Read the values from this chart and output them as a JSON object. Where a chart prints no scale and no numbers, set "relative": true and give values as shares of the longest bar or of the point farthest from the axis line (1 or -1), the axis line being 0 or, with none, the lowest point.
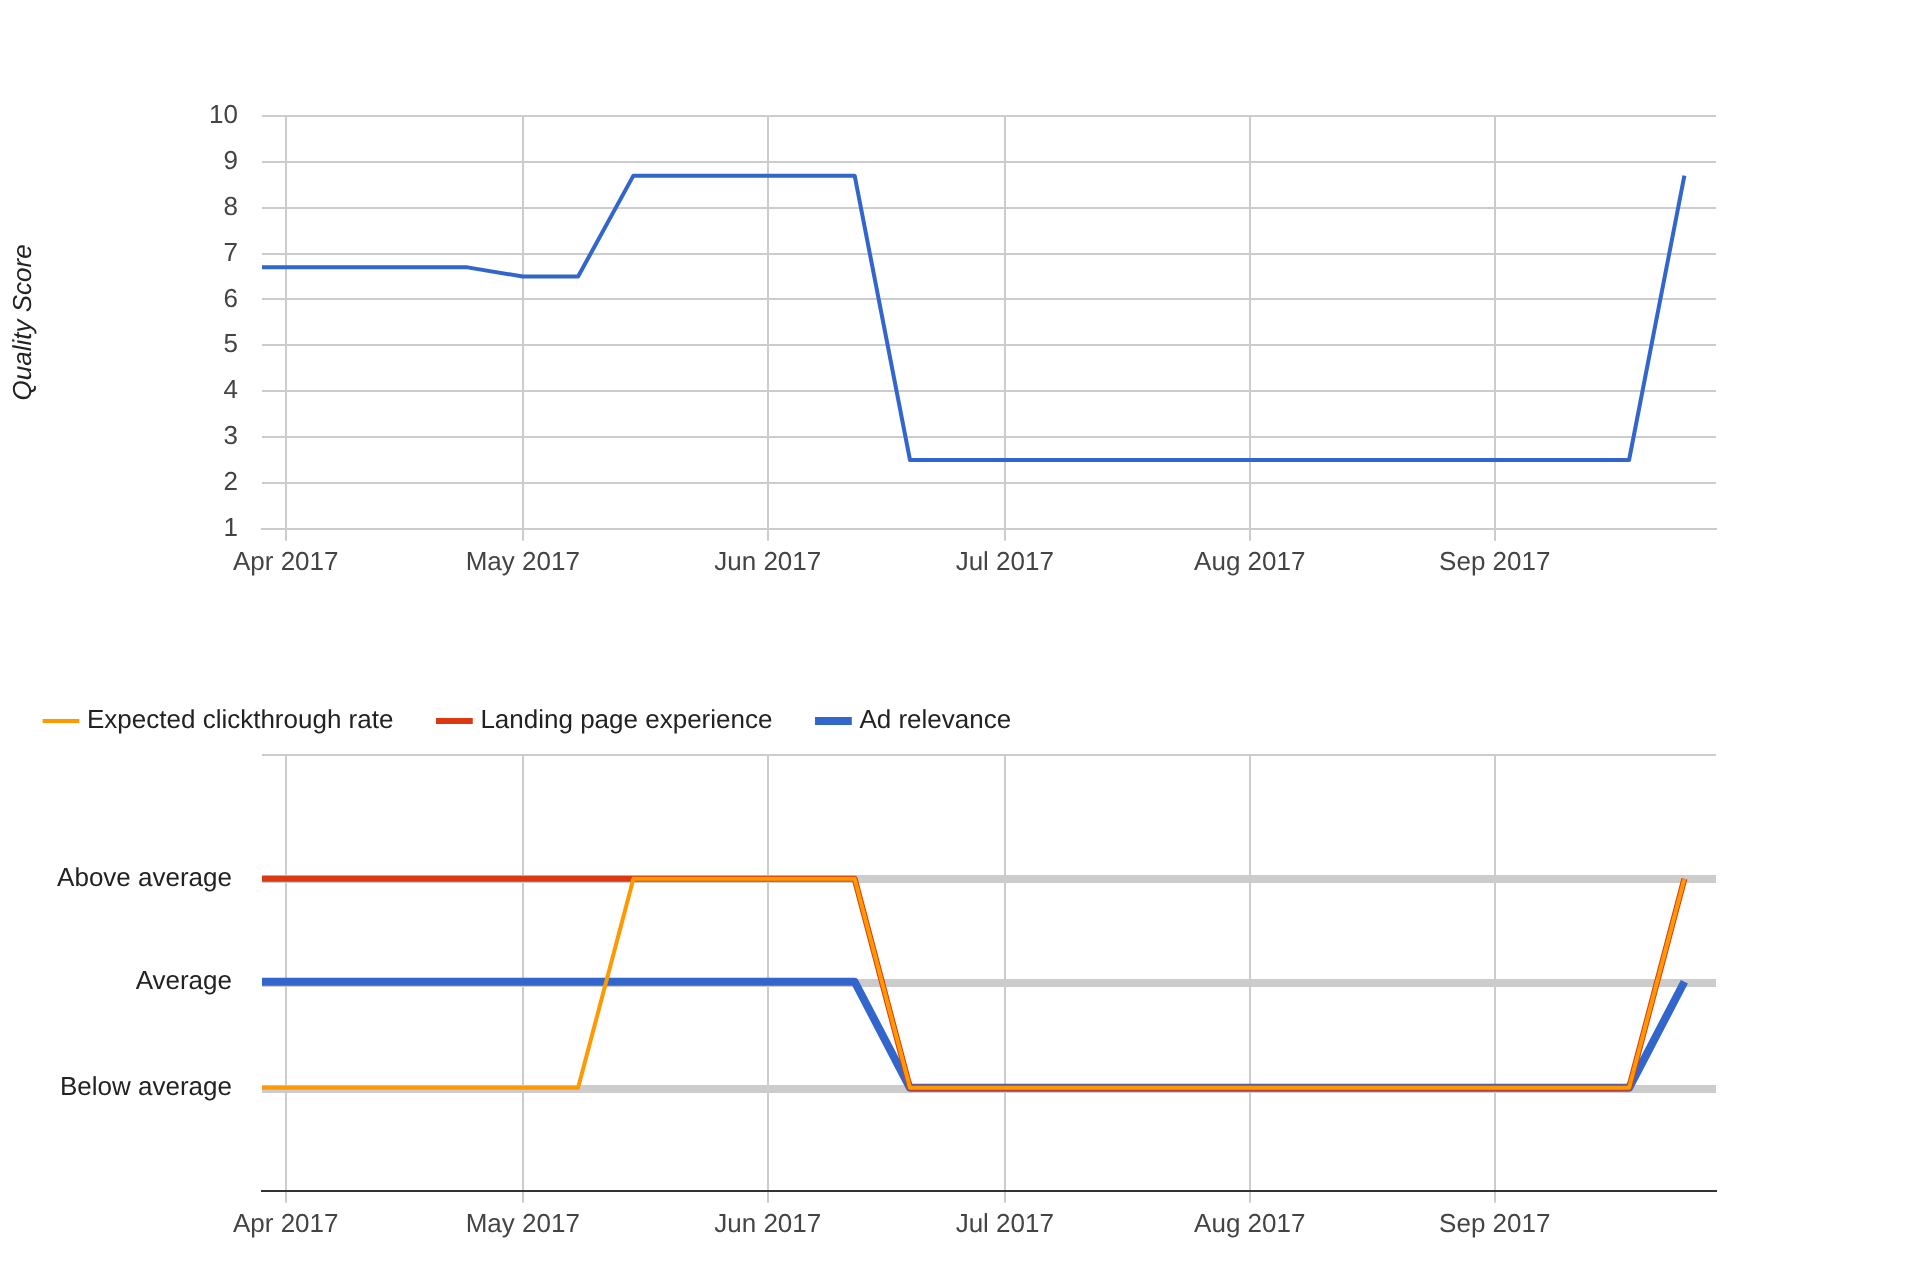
{
  "chart_data": [
    {
      "type": "line",
      "ylabel": "Quality Score",
      "xlim": [
        "2017-03-29",
        "2017-09-29"
      ],
      "ylim": [
        1,
        10
      ],
      "yticks": [
        1,
        2,
        3,
        4,
        5,
        6,
        7,
        8,
        9,
        10
      ],
      "xticks": [
        {
          "value": "2017-04-01",
          "label": "Apr 2017"
        },
        {
          "value": "2017-05-01",
          "label": "May 2017"
        },
        {
          "value": "2017-06-01",
          "label": "Jun 2017"
        },
        {
          "value": "2017-07-01",
          "label": "Jul 2017"
        },
        {
          "value": "2017-08-01",
          "label": "Aug 2017"
        },
        {
          "value": "2017-09-01",
          "label": "Sep 2017"
        }
      ],
      "x": [
        "2017-03-29",
        "2017-04-24",
        "2017-05-01",
        "2017-05-08",
        "2017-05-15",
        "2017-06-12",
        "2017-06-19",
        "2017-09-18",
        "2017-09-25"
      ],
      "series": [
        {
          "color": "#3366cc",
          "values": [
            6.7,
            6.7,
            6.5,
            6.5,
            8.7,
            8.7,
            2.5,
            2.5,
            8.7
          ]
        }
      ],
      "grid": true,
      "legend": false
    },
    {
      "type": "line",
      "xlim": [
        "2017-03-29",
        "2017-09-29"
      ],
      "relative": true,
      "ref_lines": [
        {
          "axis": "y",
          "value": 1,
          "label": "Above average",
          "color": "#cccccc"
        },
        {
          "axis": "y",
          "value": 0.67,
          "label": "Average",
          "color": "#cccccc"
        },
        {
          "axis": "y",
          "value": 0.33,
          "label": "Below average",
          "color": "#cccccc"
        }
      ],
      "xticks": [
        {
          "value": "2017-04-01",
          "label": "Apr 2017"
        },
        {
          "value": "2017-05-01",
          "label": "May 2017"
        },
        {
          "value": "2017-06-01",
          "label": "Jun 2017"
        },
        {
          "value": "2017-07-01",
          "label": "Jul 2017"
        },
        {
          "value": "2017-08-01",
          "label": "Aug 2017"
        },
        {
          "value": "2017-09-01",
          "label": "Sep 2017"
        }
      ],
      "x": [
        "2017-03-29",
        "2017-04-24",
        "2017-05-01",
        "2017-05-08",
        "2017-05-15",
        "2017-06-12",
        "2017-06-19",
        "2017-09-18",
        "2017-09-25"
      ],
      "series": [
        {
          "name": "Ad relevance",
          "color": "#3366cc",
          "values": [
            0.67,
            0.67,
            0.67,
            0.67,
            0.67,
            0.67,
            0.33,
            0.33,
            0.67
          ]
        },
        {
          "name": "Landing page experience",
          "color": "#dc3912",
          "values": [
            1,
            1,
            1,
            1,
            1,
            1,
            0.33,
            0.33,
            1
          ]
        },
        {
          "name": "Expected clickthrough rate",
          "color": "#ff9900",
          "values": [
            0.33,
            0.33,
            0.33,
            0.33,
            1,
            1,
            0.33,
            0.33,
            1
          ]
        }
      ],
      "grid": "x",
      "legend": "top"
    }
  ]
}
